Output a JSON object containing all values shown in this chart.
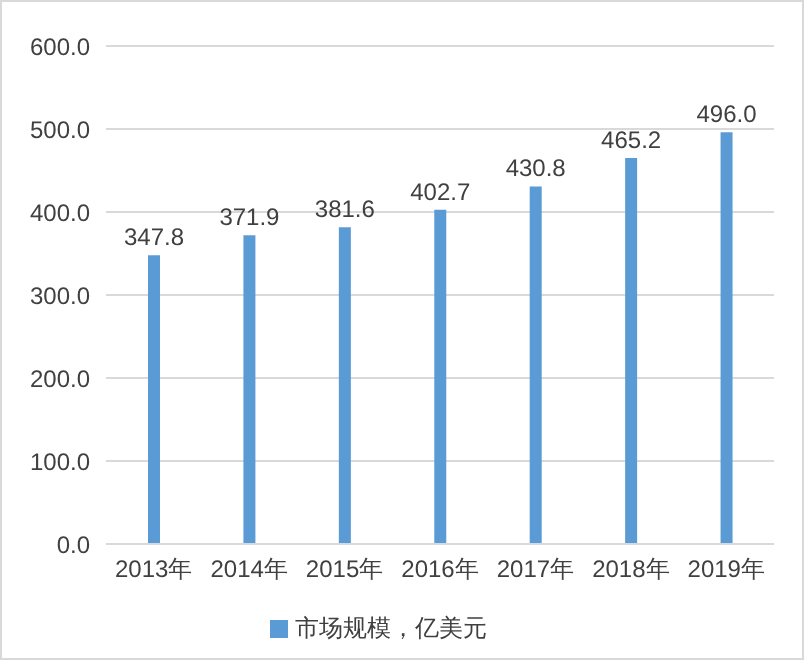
{
  "chart_data": {
    "type": "bar",
    "categories": [
      "2013年",
      "2014年",
      "2015年",
      "2016年",
      "2017年",
      "2018年",
      "2019年"
    ],
    "series": [
      {
        "name": "市场规模，亿美元",
        "color": "#5b9bd5",
        "values": [
          347.8,
          371.9,
          381.6,
          402.7,
          430.8,
          465.2,
          496.0
        ]
      }
    ],
    "value_labels": [
      "347.8",
      "371.9",
      "381.6",
      "402.7",
      "430.8",
      "465.2",
      "496.0"
    ],
    "ylim": [
      0,
      600
    ],
    "yticks": [
      {
        "value": 0,
        "label": "0.0"
      },
      {
        "value": 100,
        "label": "100.0"
      },
      {
        "value": 200,
        "label": "200.0"
      },
      {
        "value": 300,
        "label": "300.0"
      },
      {
        "value": 400,
        "label": "400.0"
      },
      {
        "value": 500,
        "label": "500.0"
      },
      {
        "value": 600,
        "label": "600.0"
      }
    ],
    "grid": "y",
    "legend": "bottom"
  }
}
